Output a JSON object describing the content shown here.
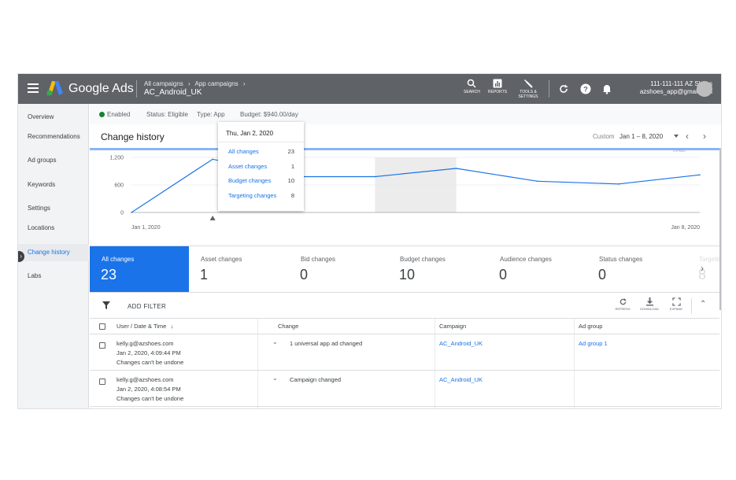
{
  "header": {
    "brand": "Google Ads",
    "breadcrumb": [
      "All campaigns",
      "›",
      "App campaigns",
      "›"
    ],
    "campaign": "AC_Android_UK",
    "tools": [
      {
        "label": "SEARCH",
        "icon": "search-icon"
      },
      {
        "label": "REPORTS",
        "icon": "reports-icon"
      },
      {
        "label_line1": "TOOLS &",
        "label_line2": "SETTINGS",
        "icon": "wrench-icon"
      }
    ],
    "account_id": "111-111-111 AZ Shoes",
    "account_email": "azshoes_app@gmail.com"
  },
  "sidebar": {
    "items": [
      {
        "label": "Overview"
      },
      {
        "label": "Recommendations"
      },
      {
        "label": "Ad groups"
      },
      {
        "label": "Keywords"
      },
      {
        "label": "Settings"
      },
      {
        "label": "Locations"
      },
      {
        "label": "Change history",
        "active": true
      },
      {
        "label": "Labs"
      }
    ]
  },
  "status": {
    "enabled": "Enabled",
    "status": "Status: Eligible",
    "type": "Type: App",
    "budget": "Budget: $940.00/day"
  },
  "page": {
    "title": "Change history",
    "date_label": "Custom",
    "date_range": "Jan 1 – 8, 2020",
    "expand_small": "EXPAND"
  },
  "tooltip": {
    "date": "Thu, Jan 2, 2020",
    "rows": [
      {
        "label": "All changes",
        "value": "23"
      },
      {
        "label": "Asset changes",
        "value": "1"
      },
      {
        "label": "Budget changes",
        "value": "10"
      },
      {
        "label": "Targeting changes",
        "value": "8"
      }
    ]
  },
  "chart_data": {
    "type": "line",
    "x_start_label": "Jan 1, 2020",
    "x_end_label": "Jan 8, 2020",
    "y_ticks": [
      "1,200",
      "600",
      "0"
    ],
    "ylim": [
      0,
      1200
    ],
    "points": [
      0,
      1160,
      780,
      780,
      960,
      680,
      620,
      820
    ],
    "highlight_index": 4,
    "line_color": "#1a73e8"
  },
  "cards": [
    {
      "label": "All changes",
      "value": "23",
      "selected": true
    },
    {
      "label": "Asset changes",
      "value": "1"
    },
    {
      "label": "Bid changes",
      "value": "0"
    },
    {
      "label": "Budget changes",
      "value": "10"
    },
    {
      "label": "Audience changes",
      "value": "0"
    },
    {
      "label": "Status changes",
      "value": "0"
    },
    {
      "label": "Targetin",
      "value": "8",
      "faded": true
    }
  ],
  "filter": {
    "add_filter": "ADD FILTER",
    "refresh": "REFRESH",
    "download": "DOWNLOAD",
    "expand": "EXPAND"
  },
  "table": {
    "headers": {
      "user": "User / Date & Time",
      "sort": "↓",
      "change": "Change",
      "campaign": "Campaign",
      "ad_group": "Ad group"
    },
    "rows": [
      {
        "user": "kelly.g@azshoes.com",
        "datetime": "Jan 2, 2020, 4:09:44 PM",
        "note": "Changes can't be undone",
        "change": "1 universal app ad changed",
        "campaign": "AC_Android_UK",
        "ad_group": "Ad group 1"
      },
      {
        "user": "kelly.g@azshoes.com",
        "datetime": "Jan 2, 2020, 4:08:54 PM",
        "note": "Changes can't be undone",
        "change": "Campaign changed",
        "campaign": "AC_Android_UK",
        "ad_group": ""
      }
    ]
  }
}
